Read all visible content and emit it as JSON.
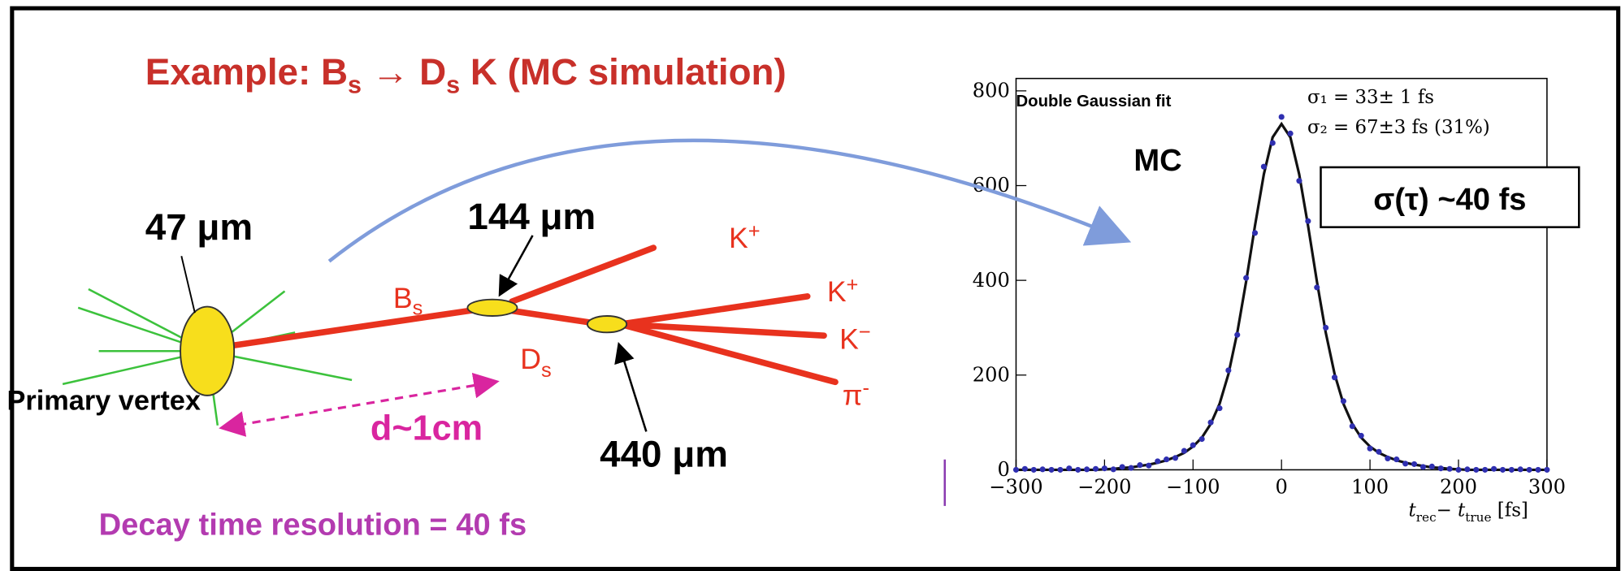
{
  "diagram": {
    "title": [
      "Example: B",
      "s",
      " → D",
      "s",
      " K (MC simulation)"
    ],
    "pv_size": "47 μm",
    "bs_size": "144 μm",
    "ds_size": "440 μm",
    "primary_vertex": "Primary vertex",
    "distance": "d~1cm",
    "resolution": "Decay time resolution = 40 fs",
    "bs_label": [
      "B",
      "s"
    ],
    "ds_label": [
      "D",
      "s"
    ],
    "kplus_1": [
      "K",
      "+"
    ],
    "kplus_2": [
      "K",
      "+"
    ],
    "kminus": [
      "K",
      "−"
    ],
    "pion": [
      "π",
      "-"
    ]
  },
  "chart_data": {
    "type": "scatter",
    "x": [
      -300,
      -290,
      -280,
      -270,
      -260,
      -250,
      -240,
      -230,
      -220,
      -210,
      -200,
      -190,
      -180,
      -170,
      -160,
      -150,
      -140,
      -130,
      -120,
      -110,
      -100,
      -90,
      -80,
      -70,
      -60,
      -50,
      -40,
      -30,
      -20,
      -10,
      0,
      10,
      20,
      30,
      40,
      50,
      60,
      70,
      80,
      90,
      100,
      110,
      120,
      130,
      140,
      150,
      160,
      170,
      180,
      190,
      200,
      210,
      220,
      230,
      240,
      250,
      260,
      270,
      280,
      290,
      300
    ],
    "series": [
      {
        "color": "#2f2fb0",
        "values": [
          0,
          2,
          0,
          1,
          0,
          0,
          3,
          0,
          1,
          2,
          3,
          1,
          6,
          4,
          10,
          9,
          18,
          22,
          25,
          40,
          52,
          65,
          100,
          130,
          210,
          285,
          405,
          500,
          640,
          690,
          745,
          710,
          610,
          525,
          385,
          300,
          195,
          145,
          92,
          72,
          45,
          38,
          24,
          22,
          13,
          12,
          6,
          7,
          3,
          2,
          0,
          1,
          0,
          0,
          2,
          0,
          0,
          1,
          0,
          0,
          0
        ]
      }
    ],
    "fit_line": {
      "color": "#111111",
      "values": [
        0,
        0,
        0,
        0,
        0,
        0,
        0,
        0,
        0,
        0,
        1,
        2,
        4,
        5,
        8,
        11,
        15,
        20,
        27,
        36,
        49,
        68,
        97,
        139,
        202,
        290,
        397,
        515,
        624,
        702,
        730,
        702,
        624,
        515,
        397,
        290,
        202,
        139,
        97,
        68,
        49,
        36,
        27,
        20,
        15,
        11,
        8,
        5,
        4,
        2,
        1,
        0,
        0,
        0,
        0,
        0,
        0,
        0,
        0,
        0,
        0
      ]
    },
    "xlim": [
      -300,
      300
    ],
    "ylim": [
      0,
      800
    ],
    "xticks": [
      {
        "value": -300,
        "label": "−300"
      },
      {
        "value": -200,
        "label": "−200"
      },
      {
        "value": -100,
        "label": "−100"
      },
      0,
      100,
      200,
      300
    ],
    "yticks": [
      0,
      200,
      400,
      600,
      800
    ],
    "x_label": [
      "t",
      "rec",
      "− ",
      "t",
      "true",
      " [fs]"
    ],
    "annotations": [
      "Double Gaussian fit",
      "σ₁ = 33± 1 fs",
      "σ₂ = 67±3 fs (31%)",
      "MC",
      "σ(τ) ~40 fs"
    ]
  }
}
